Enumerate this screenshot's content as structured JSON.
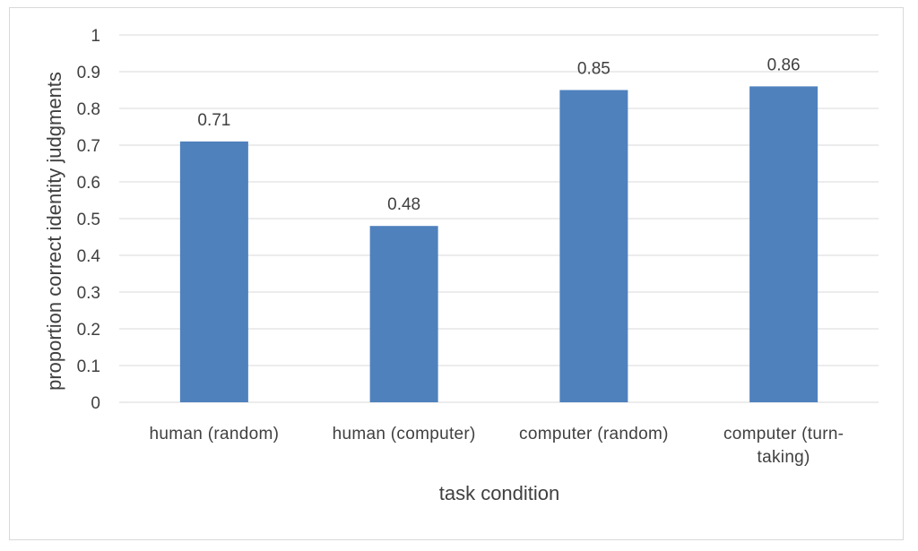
{
  "chart_data": {
    "type": "bar",
    "categories": [
      [
        "human (random)"
      ],
      [
        "human (computer)"
      ],
      [
        "computer (random)"
      ],
      [
        "computer (turn-",
        "taking)"
      ]
    ],
    "values": [
      0.71,
      0.48,
      0.85,
      0.86
    ],
    "data_labels": [
      "0.71",
      "0.48",
      "0.85",
      "0.86"
    ],
    "xlabel": "task condition",
    "ylabel": "proportion correct identity judgments",
    "ylim": [
      0,
      1
    ],
    "yticks": [
      "0",
      "0.1",
      "0.2",
      "0.3",
      "0.4",
      "0.5",
      "0.6",
      "0.7",
      "0.8",
      "0.9",
      "1"
    ],
    "grid": true,
    "legend": "none",
    "bar_color": "#4f81bd",
    "grid_color": "#d9d9d9"
  }
}
